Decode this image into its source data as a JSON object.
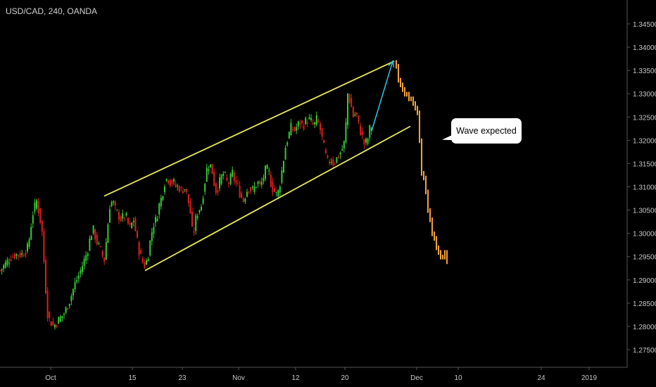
{
  "header": {
    "title": "USD/CAD, 240, OANDA"
  },
  "annotation": {
    "text": "Wave expected"
  },
  "colors": {
    "background": "#000000",
    "up_candle": "#33cc33",
    "down_candle": "#e01e1e",
    "channel": "#e8e85a",
    "arrow": "#2ec4e6",
    "projection": "#f5a23c",
    "axis_text": "#c8c8c8",
    "axis_line": "#555555"
  },
  "chart_data": {
    "type": "candlestick",
    "title": "USD/CAD, 240, OANDA",
    "xlabel": "",
    "ylabel": "",
    "ylim": [
      1.2705,
      1.348
    ],
    "grid": false,
    "y_ticks": [
      "1.34500",
      "1.34000",
      "1.33500",
      "1.33000",
      "1.32500",
      "1.32000",
      "1.31500",
      "1.31000",
      "1.30500",
      "1.30000",
      "1.29500",
      "1.29000",
      "1.28500",
      "1.28000",
      "1.27500"
    ],
    "x_ticks": [
      "Oct",
      "15",
      "23",
      "Nov",
      "12",
      "20",
      "Dec",
      "10",
      "24",
      "2019"
    ],
    "price_path": [
      [
        0,
        1.292
      ],
      [
        8,
        1.2935
      ],
      [
        16,
        1.295
      ],
      [
        24,
        1.2955
      ],
      [
        32,
        1.2955
      ],
      [
        40,
        1.297
      ],
      [
        46,
        1.304
      ],
      [
        52,
        1.307
      ],
      [
        56,
        1.304
      ],
      [
        60,
        1.3
      ],
      [
        64,
        1.29
      ],
      [
        68,
        1.282
      ],
      [
        76,
        1.28
      ],
      [
        84,
        1.2815
      ],
      [
        92,
        1.283
      ],
      [
        100,
        1.286
      ],
      [
        106,
        1.289
      ],
      [
        112,
        1.291
      ],
      [
        118,
        1.2935
      ],
      [
        124,
        1.296
      ],
      [
        128,
        1.299
      ],
      [
        132,
        1.301
      ],
      [
        138,
        1.298
      ],
      [
        144,
        1.296
      ],
      [
        148,
        1.294
      ],
      [
        152,
        1.3
      ],
      [
        156,
        1.306
      ],
      [
        160,
        1.307
      ],
      [
        164,
        1.305
      ],
      [
        168,
        1.304
      ],
      [
        172,
        1.303
      ],
      [
        178,
        1.304
      ],
      [
        184,
        1.301
      ],
      [
        190,
        1.303
      ],
      [
        194,
        1.299
      ],
      [
        198,
        1.296
      ],
      [
        202,
        1.294
      ],
      [
        206,
        1.293
      ],
      [
        210,
        1.295
      ],
      [
        214,
        1.299
      ],
      [
        218,
        1.302
      ],
      [
        222,
        1.303
      ],
      [
        226,
        1.306
      ],
      [
        230,
        1.308
      ],
      [
        234,
        1.311
      ],
      [
        238,
        1.312
      ],
      [
        242,
        1.311
      ],
      [
        246,
        1.311
      ],
      [
        250,
        1.31
      ],
      [
        254,
        1.31
      ],
      [
        258,
        1.309
      ],
      [
        262,
        1.31
      ],
      [
        266,
        1.308
      ],
      [
        270,
        1.305
      ],
      [
        274,
        1.299
      ],
      [
        278,
        1.303
      ],
      [
        282,
        1.305
      ],
      [
        286,
        1.306
      ],
      [
        290,
        1.31
      ],
      [
        294,
        1.314
      ],
      [
        298,
        1.315
      ],
      [
        302,
        1.313
      ],
      [
        306,
        1.309
      ],
      [
        310,
        1.31
      ],
      [
        314,
        1.312
      ],
      [
        318,
        1.313
      ],
      [
        322,
        1.311
      ],
      [
        326,
        1.311
      ],
      [
        330,
        1.313
      ],
      [
        334,
        1.311
      ],
      [
        338,
        1.31
      ],
      [
        342,
        1.308
      ],
      [
        346,
        1.307
      ],
      [
        350,
        1.309
      ],
      [
        354,
        1.31
      ],
      [
        358,
        1.309
      ],
      [
        362,
        1.31
      ],
      [
        366,
        1.311
      ],
      [
        370,
        1.31
      ],
      [
        374,
        1.312
      ],
      [
        378,
        1.314
      ],
      [
        382,
        1.313
      ],
      [
        386,
        1.31
      ],
      [
        390,
        1.309
      ],
      [
        394,
        1.308
      ],
      [
        398,
        1.311
      ],
      [
        402,
        1.315
      ],
      [
        406,
        1.319
      ],
      [
        410,
        1.321
      ],
      [
        414,
        1.323
      ],
      [
        418,
        1.322
      ],
      [
        422,
        1.323
      ],
      [
        426,
        1.324
      ],
      [
        430,
        1.323
      ],
      [
        434,
        1.324
      ],
      [
        438,
        1.3245
      ],
      [
        442,
        1.324
      ],
      [
        446,
        1.323
      ],
      [
        450,
        1.3245
      ],
      [
        454,
        1.323
      ],
      [
        458,
        1.32
      ],
      [
        462,
        1.317
      ],
      [
        466,
        1.315
      ],
      [
        470,
        1.316
      ],
      [
        474,
        1.315
      ],
      [
        478,
        1.316
      ],
      [
        482,
        1.317
      ],
      [
        486,
        1.318
      ],
      [
        490,
        1.32
      ],
      [
        494,
        1.33
      ],
      [
        498,
        1.328
      ],
      [
        502,
        1.325
      ],
      [
        506,
        1.326
      ],
      [
        510,
        1.323
      ],
      [
        514,
        1.321
      ],
      [
        518,
        1.319
      ],
      [
        522,
        1.32
      ],
      [
        526,
        1.323
      ],
      [
        530,
        1.323
      ]
    ],
    "projection_path": [
      [
        563,
        1.336
      ],
      [
        566,
        1.333
      ],
      [
        569,
        1.332
      ],
      [
        572,
        1.331
      ],
      [
        575,
        1.33
      ],
      [
        578,
        1.33
      ],
      [
        581,
        1.329
      ],
      [
        584,
        1.329
      ],
      [
        587,
        1.328
      ],
      [
        590,
        1.327
      ],
      [
        593,
        1.326
      ],
      [
        596,
        1.32
      ],
      [
        599,
        1.313
      ],
      [
        602,
        1.312
      ],
      [
        605,
        1.309
      ],
      [
        608,
        1.305
      ],
      [
        611,
        1.303
      ],
      [
        614,
        1.3
      ],
      [
        617,
        1.299
      ],
      [
        620,
        1.297
      ],
      [
        623,
        1.296
      ],
      [
        626,
        1.295
      ],
      [
        629,
        1.295
      ],
      [
        632,
        1.296
      ],
      [
        635,
        1.294
      ]
    ],
    "channel": {
      "upper": [
        [
          148,
          1.308
        ],
        [
          560,
          1.337
        ]
      ],
      "lower": [
        [
          206,
          1.292
        ],
        [
          583,
          1.323
        ]
      ]
    },
    "arrow": {
      "from": [
        528,
        1.322
      ],
      "to": [
        558,
        1.337
      ]
    }
  }
}
